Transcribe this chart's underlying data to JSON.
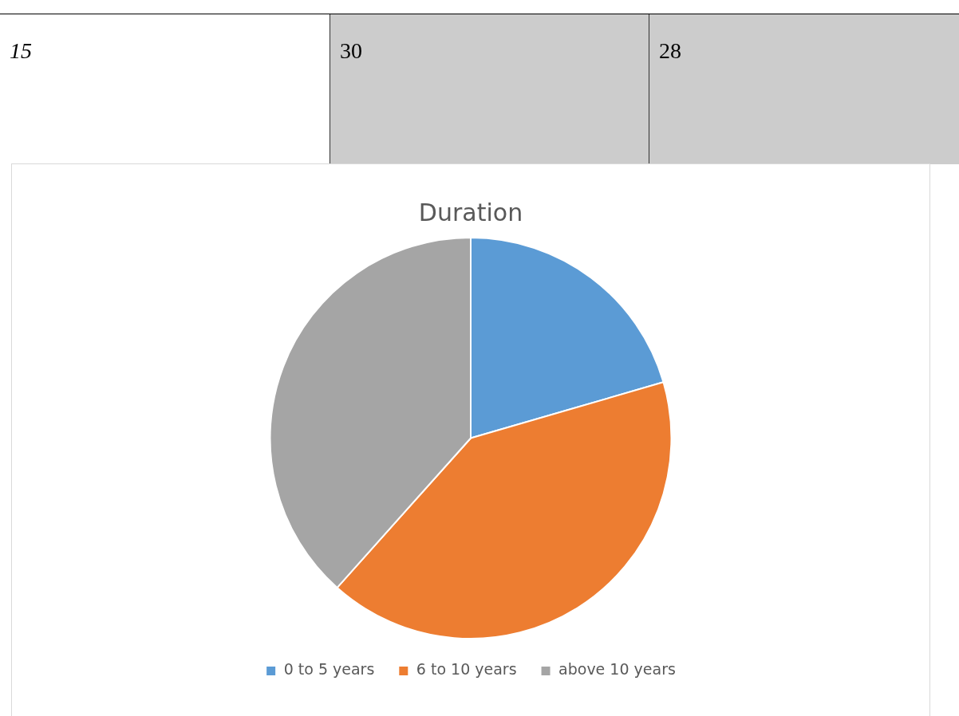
{
  "chart_data": {
    "type": "pie",
    "title": "Duration",
    "categories": [
      "0 to 5 years",
      "6 to 10 years",
      "above 10 years"
    ],
    "values": [
      20.5,
      41.1,
      38.4
    ],
    "colors": [
      "#5b9bd5",
      "#ed7d31",
      "#a5a5a5"
    ],
    "annotations": [
      "15",
      "30",
      "28"
    ],
    "legend": "bottom"
  }
}
